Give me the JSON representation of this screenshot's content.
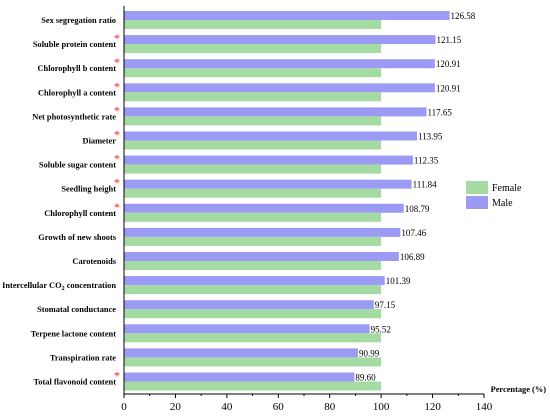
{
  "chart_data": {
    "type": "bar",
    "orientation": "horizontal",
    "categories": [
      "Sex segregation ratio",
      "Soluble protein content",
      "Chlorophyll b content",
      "Chlorophyll a content",
      "Net photosynthetic rate",
      "Diameter",
      "Soluble sugar content",
      "Seedling height",
      "Chlorophyll content",
      "Growth of new shoots",
      "Carotenoids",
      "Intercellular CO2 concentration",
      "Stomatal conductance",
      "Terpene lactone content",
      "Transpiration rate",
      "Total flavonoid content"
    ],
    "significant": [
      false,
      true,
      true,
      true,
      true,
      true,
      true,
      true,
      true,
      false,
      false,
      false,
      false,
      false,
      false,
      true
    ],
    "significance_marker": "*",
    "series": [
      {
        "name": "Male",
        "color": "#9b9bf5",
        "values": [
          126.58,
          121.15,
          120.91,
          120.91,
          117.65,
          113.95,
          112.35,
          111.84,
          108.79,
          107.46,
          106.89,
          101.39,
          97.15,
          95.52,
          90.99,
          89.6
        ],
        "labels": [
          "126.58",
          "121.15",
          "120.91",
          "120.91",
          "117.65",
          "113.95",
          "112.35",
          "111.84",
          "108.79",
          "107.46",
          "106.89",
          "101.39",
          "97.15",
          "95.52",
          "90.99",
          "89.60"
        ]
      },
      {
        "name": "Female",
        "color": "#a3dba3",
        "values": [
          100,
          100,
          100,
          100,
          100,
          100,
          100,
          100,
          100,
          100,
          100,
          100,
          100,
          100,
          100,
          100
        ]
      }
    ],
    "xlabel": "Percentage (%)",
    "ylabel": "",
    "xlim": [
      0,
      140
    ],
    "xticks": [
      0,
      20,
      40,
      60,
      80,
      100,
      120,
      140
    ],
    "grid": false,
    "legend_position": "right",
    "colors": {
      "male": "#9b9bf5",
      "female": "#a3dba3",
      "star": "#e8202a"
    }
  }
}
